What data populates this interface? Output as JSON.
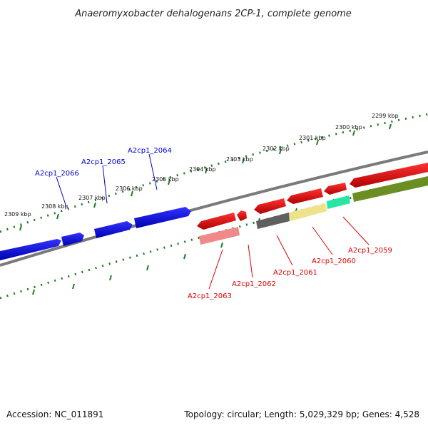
{
  "title": "Anaeromyxobacter dehalogenans 2CP-1, complete genome",
  "footer": {
    "accession": "Accession: NC_011891",
    "topology": "Topology: circular; Length: 5,029,329 bp; Genes: 4,528"
  },
  "colors": {
    "backbone": "#7f7f7f",
    "ticks": "#1f7a1f",
    "forward_label": "#0000cc",
    "reverse_label": "#dd0000"
  },
  "kbp_labels": [
    "2299 kbp",
    "2300 kbp",
    "2301 kbp",
    "2302 kbp",
    "2303 kbp",
    "2304 kbp",
    "2305 kbp",
    "2306 kbp",
    "2307 kbp",
    "2308 kbp",
    "2309 kbp"
  ],
  "gene_labels": {
    "forward": [
      "A2cp1_2064",
      "A2cp1_2065",
      "A2cp1_2066"
    ],
    "reverse": [
      "A2cp1_2059",
      "A2cp1_2060",
      "A2cp1_2061",
      "A2cp1_2062",
      "A2cp1_2063"
    ]
  },
  "features": [
    {
      "id": "gene-fwd-1",
      "strand": "forward",
      "color": "#0000dd"
    },
    {
      "id": "gene-fwd-2",
      "strand": "forward",
      "color": "#0000dd"
    },
    {
      "id": "gene-fwd-3",
      "strand": "forward",
      "color": "#0000dd"
    },
    {
      "id": "gene-fwd-4",
      "strand": "forward",
      "color": "#0000dd"
    },
    {
      "id": "gene-rev-1",
      "strand": "reverse",
      "color": "#ee0000"
    },
    {
      "id": "gene-rev-2",
      "strand": "reverse",
      "color": "#ee0000"
    },
    {
      "id": "gene-rev-3",
      "strand": "reverse",
      "color": "#ee0000"
    },
    {
      "id": "gene-rev-4",
      "strand": "reverse",
      "color": "#ee0000"
    },
    {
      "id": "gene-rev-5",
      "strand": "reverse",
      "color": "#ee0000"
    },
    {
      "id": "gene-rev-6",
      "strand": "reverse",
      "color": "#ee0000"
    },
    {
      "id": "cds-pink",
      "strand": "reverse",
      "color": "#f08080"
    },
    {
      "id": "cds-grey",
      "strand": "reverse",
      "color": "#606060"
    },
    {
      "id": "cds-khaki",
      "strand": "reverse",
      "color": "#eee08a"
    },
    {
      "id": "cds-teal",
      "strand": "reverse",
      "color": "#22e6a0"
    },
    {
      "id": "cds-olive",
      "strand": "reverse",
      "color": "#6b8e23"
    }
  ]
}
